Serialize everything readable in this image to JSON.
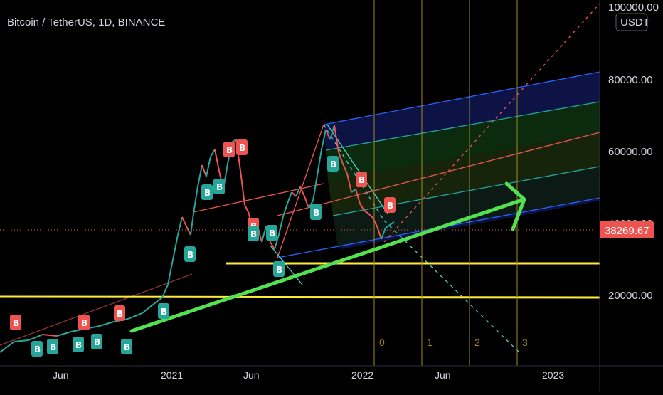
{
  "chart": {
    "title": "Bitcoin / TetherUS, 1D, BINANCE",
    "currency": "USDT",
    "last_price": "38269.67"
  },
  "chart_data": {
    "type": "line",
    "symbol": "BTCUSDT",
    "exchange": "BINANCE",
    "interval": "1D",
    "y_scale": "log",
    "y_ticks": [
      "100000.00",
      "80000.00",
      "60000.00",
      "40000.00",
      "20000.00"
    ],
    "x_ticks": [
      "Jun",
      "2021",
      "Jun",
      "2022",
      "Jun",
      "2023"
    ],
    "last_price": 38269.67,
    "fib_time_zones": [
      "0",
      "1",
      "2",
      "3"
    ],
    "support_levels": [
      29000,
      19500
    ],
    "signal_label": "B",
    "colors": {
      "up": "#26a69a",
      "down": "#ef5350",
      "arrow": "#53e051",
      "support": "#ffeb3b",
      "fib": "#a08a22",
      "fork_fill": "#1a237e"
    }
  },
  "signals": {
    "buy": "B",
    "sell": "B"
  }
}
